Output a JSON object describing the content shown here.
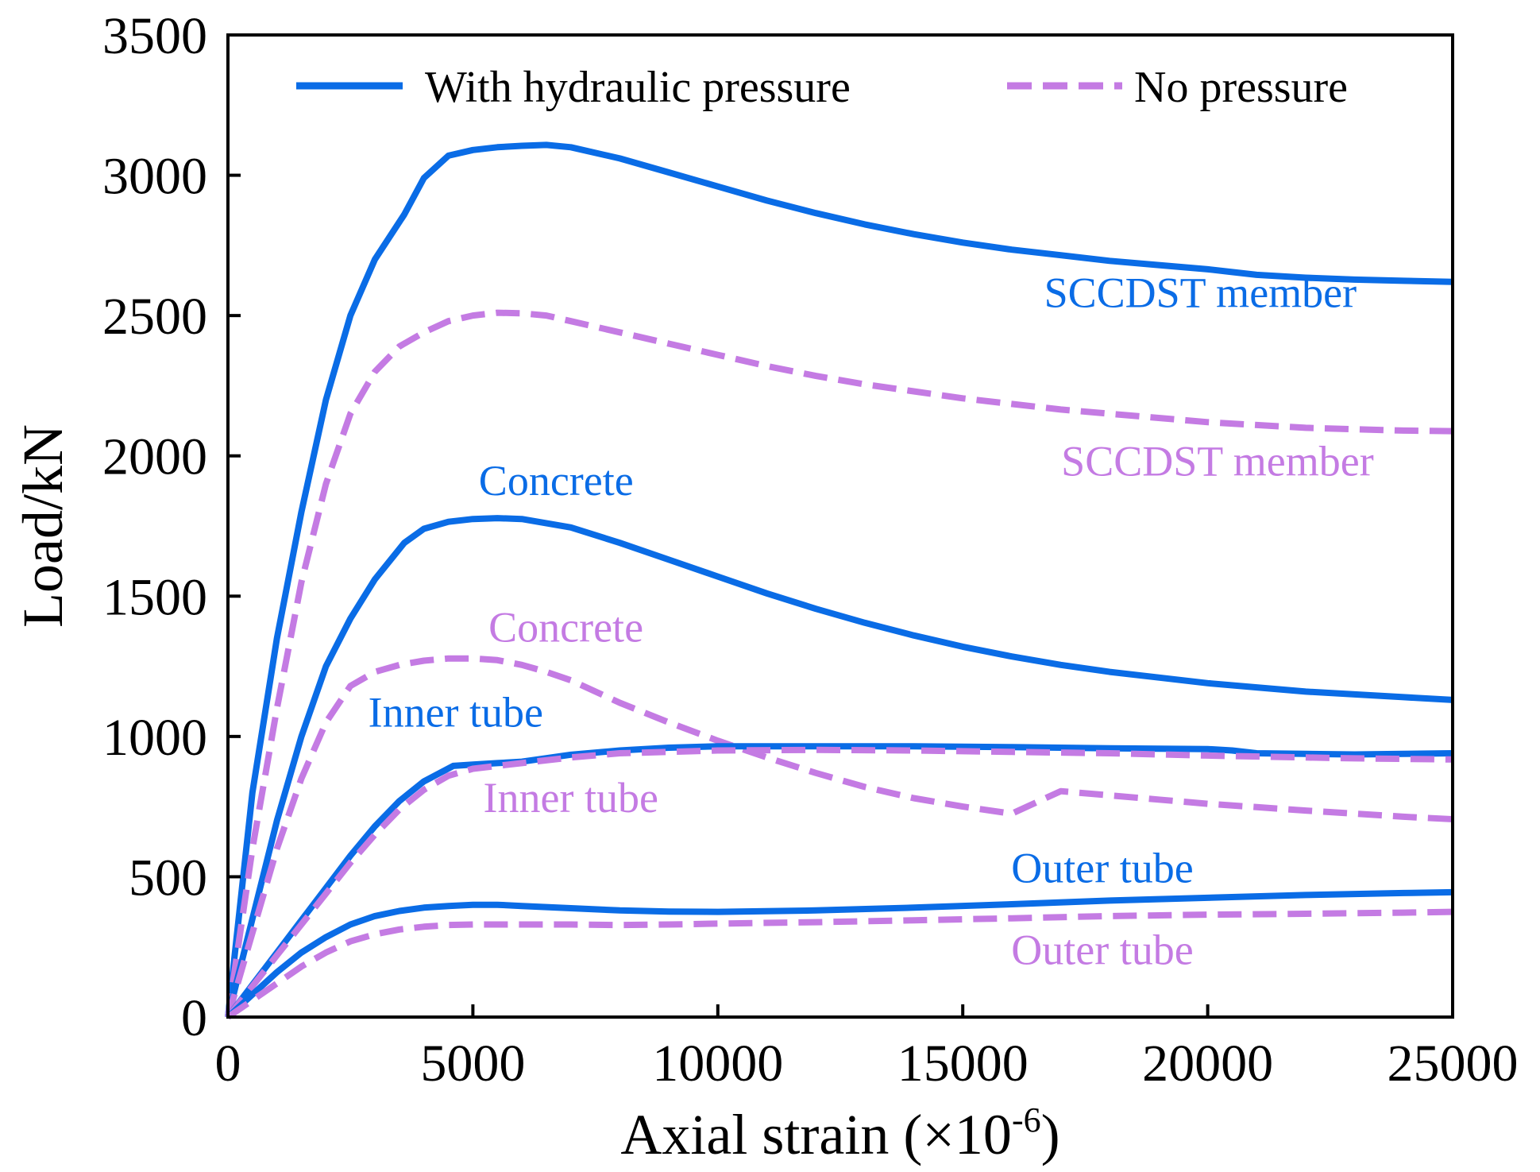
{
  "chart_data": {
    "type": "line",
    "title": "",
    "xlabel": {
      "main": "Axial strain (×10",
      "exp": "-6",
      "close": ")"
    },
    "ylabel": "Load/kN",
    "xlim": [
      0,
      25000
    ],
    "ylim": [
      0,
      3500
    ],
    "xticks": [
      0,
      5000,
      10000,
      15000,
      20000,
      25000
    ],
    "yticks": [
      0,
      500,
      1000,
      1500,
      2000,
      2500,
      3000,
      3500
    ],
    "colors": {
      "with": "#0A6CE6",
      "without": "#C47BE3"
    },
    "legend": {
      "position": "top",
      "entries": [
        {
          "label": "With hydraulic pressure",
          "style": "solid",
          "color": "#0A6CE6"
        },
        {
          "label": "No pressure",
          "style": "dashed",
          "color": "#C47BE3"
        }
      ]
    },
    "series": [
      {
        "name": "SCCDST member",
        "group": "With hydraulic pressure",
        "style": "solid",
        "x": [
          0,
          500,
          1000,
          1500,
          2000,
          2500,
          3000,
          3600,
          4000,
          4500,
          5000,
          5500,
          6000,
          6500,
          7000,
          8000,
          9000,
          10000,
          11000,
          12000,
          13000,
          14000,
          15000,
          16000,
          17000,
          18000,
          19000,
          20000,
          20500,
          21000,
          22000,
          23000,
          24000,
          25000
        ],
        "y": [
          0,
          800,
          1350,
          1800,
          2200,
          2500,
          2700,
          2860,
          2990,
          3070,
          3090,
          3100,
          3105,
          3108,
          3100,
          3060,
          3010,
          2960,
          2910,
          2865,
          2825,
          2790,
          2760,
          2735,
          2715,
          2695,
          2680,
          2665,
          2655,
          2645,
          2635,
          2628,
          2624,
          2620
        ]
      },
      {
        "name": "SCCDST member",
        "group": "No pressure",
        "style": "dashed",
        "x": [
          0,
          500,
          1000,
          1500,
          2000,
          2500,
          3000,
          3500,
          4000,
          4500,
          5000,
          5500,
          6000,
          6500,
          7000,
          8000,
          9000,
          10000,
          11000,
          12000,
          13000,
          14000,
          15000,
          16000,
          17000,
          18000,
          19000,
          20000,
          21000,
          22000,
          23000,
          24000,
          25000
        ],
        "y": [
          0,
          600,
          1100,
          1550,
          1900,
          2150,
          2300,
          2390,
          2440,
          2480,
          2500,
          2510,
          2508,
          2500,
          2480,
          2440,
          2400,
          2360,
          2320,
          2285,
          2255,
          2230,
          2205,
          2185,
          2165,
          2150,
          2135,
          2120,
          2110,
          2100,
          2095,
          2090,
          2088
        ]
      },
      {
        "name": "Concrete",
        "group": "With hydraulic pressure",
        "style": "solid",
        "x": [
          0,
          500,
          1000,
          1500,
          2000,
          2500,
          3000,
          3600,
          4000,
          4500,
          5000,
          5500,
          6000,
          7000,
          8000,
          9000,
          10000,
          11000,
          12000,
          13000,
          14000,
          15000,
          16000,
          17000,
          18000,
          19000,
          20000,
          21000,
          22000,
          23000,
          24000,
          25000
        ],
        "y": [
          0,
          350,
          700,
          1000,
          1250,
          1420,
          1560,
          1690,
          1740,
          1765,
          1775,
          1778,
          1775,
          1745,
          1690,
          1630,
          1570,
          1510,
          1455,
          1405,
          1360,
          1320,
          1285,
          1255,
          1230,
          1210,
          1190,
          1175,
          1160,
          1150,
          1140,
          1130
        ]
      },
      {
        "name": "Concrete",
        "group": "No pressure",
        "style": "dashed",
        "x": [
          0,
          500,
          1000,
          1500,
          2000,
          2500,
          3000,
          3500,
          4000,
          4500,
          5000,
          5500,
          6000,
          6500,
          7000,
          8000,
          9000,
          10000,
          11000,
          12000,
          13000,
          14000,
          15000,
          16000,
          17000,
          18000,
          19000,
          20000,
          21000,
          22000,
          23000,
          24000,
          25000
        ],
        "y": [
          0,
          300,
          600,
          850,
          1050,
          1180,
          1230,
          1255,
          1270,
          1278,
          1278,
          1272,
          1255,
          1230,
          1200,
          1120,
          1050,
          985,
          925,
          870,
          820,
          780,
          750,
          725,
          805,
          790,
          775,
          760,
          748,
          736,
          725,
          714,
          705
        ]
      },
      {
        "name": "Inner tube",
        "group": "With hydraulic pressure",
        "style": "solid",
        "x": [
          0,
          500,
          1000,
          1500,
          2000,
          2500,
          3000,
          3500,
          4000,
          4600,
          5000,
          5500,
          6000,
          7000,
          8000,
          9000,
          10000,
          12000,
          14000,
          16000,
          18000,
          20000,
          20500,
          21000,
          22000,
          23000,
          24000,
          25000
        ],
        "y": [
          0,
          115,
          230,
          345,
          460,
          575,
          680,
          770,
          840,
          895,
          900,
          905,
          910,
          935,
          950,
          960,
          965,
          965,
          965,
          962,
          958,
          955,
          950,
          940,
          938,
          936,
          938,
          940
        ]
      },
      {
        "name": "Inner tube",
        "group": "No pressure",
        "style": "dashed",
        "x": [
          0,
          500,
          1000,
          1500,
          2000,
          2500,
          3000,
          3500,
          4000,
          4500,
          5000,
          5500,
          6000,
          7000,
          8000,
          9000,
          10000,
          12000,
          14000,
          16000,
          18000,
          20000,
          22000,
          23000,
          24000,
          25000
        ],
        "y": [
          0,
          110,
          220,
          330,
          440,
          550,
          650,
          740,
          810,
          860,
          885,
          895,
          905,
          925,
          940,
          945,
          950,
          952,
          950,
          945,
          940,
          932,
          925,
          922,
          920,
          918
        ]
      },
      {
        "name": "Outer tube",
        "group": "With hydraulic pressure",
        "style": "solid",
        "x": [
          0,
          500,
          1000,
          1500,
          2000,
          2500,
          3000,
          3500,
          4000,
          4500,
          5000,
          5500,
          6000,
          7000,
          8000,
          9000,
          10000,
          12000,
          14000,
          16000,
          18000,
          20000,
          22000,
          24000,
          25000
        ],
        "y": [
          0,
          80,
          160,
          230,
          285,
          330,
          360,
          378,
          390,
          396,
          400,
          400,
          396,
          388,
          380,
          376,
          375,
          380,
          390,
          402,
          415,
          425,
          435,
          442,
          445
        ]
      },
      {
        "name": "Outer tube",
        "group": "No pressure",
        "style": "dashed",
        "x": [
          0,
          500,
          1000,
          1500,
          2000,
          2500,
          3000,
          3500,
          4000,
          4500,
          5000,
          6000,
          7000,
          8000,
          9000,
          10000,
          12000,
          14000,
          16000,
          18000,
          20000,
          22000,
          24000,
          25000
        ],
        "y": [
          0,
          60,
          120,
          180,
          230,
          270,
          295,
          312,
          322,
          328,
          330,
          330,
          330,
          328,
          330,
          333,
          338,
          345,
          352,
          360,
          365,
          368,
          372,
          375
        ]
      }
    ],
    "annotations": [
      {
        "text": "SCCDST member",
        "x": 19850,
        "y": 2530,
        "color": "#0A6CE6"
      },
      {
        "text": "SCCDST member",
        "x": 20200,
        "y": 1930,
        "color": "#C47BE3"
      },
      {
        "text": "Concrete",
        "x": 6700,
        "y": 1860,
        "color": "#0A6CE6"
      },
      {
        "text": "Concrete",
        "x": 6900,
        "y": 1338,
        "color": "#C47BE3"
      },
      {
        "text": "Inner tube",
        "x": 4650,
        "y": 1035,
        "color": "#0A6CE6"
      },
      {
        "text": "Inner tube",
        "x": 7000,
        "y": 730,
        "color": "#C47BE3"
      },
      {
        "text": "Outer tube",
        "x": 17850,
        "y": 480,
        "color": "#0A6CE6"
      },
      {
        "text": "Outer tube",
        "x": 17850,
        "y": 188,
        "color": "#C47BE3"
      }
    ]
  }
}
